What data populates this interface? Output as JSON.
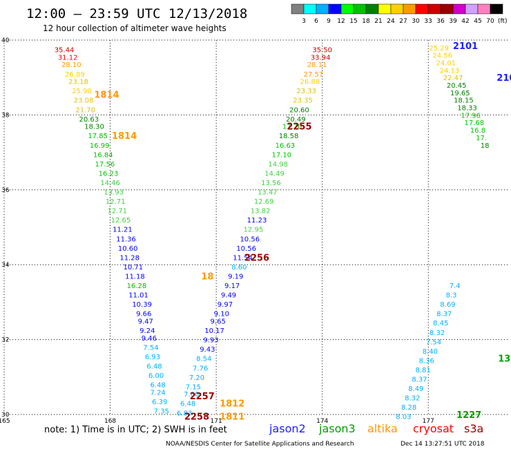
{
  "header": {
    "title": "12:00 – 23:59 UTC 12/13/2018",
    "subtitle": "12 hour collection of altimeter wave heights"
  },
  "colors": {
    "plot_bg": "#ffffff",
    "grid": "#000000",
    "text": "#000000",
    "jason2": "#1e1eff",
    "jason3": "#00a000",
    "altika": "#ff9900",
    "cryosat": "#ff0000",
    "s3a": "#990000"
  },
  "colorbar": {
    "colors": [
      "#808080",
      "#00ffff",
      "#00b0ff",
      "#0000ff",
      "#00ff00",
      "#00c000",
      "#008000",
      "#ffff00",
      "#ffd000",
      "#ff9900",
      "#ff0000",
      "#cc0000",
      "#990000",
      "#cc00cc",
      "#d0a0ff",
      "#ff80c0",
      "#000000"
    ],
    "labels": [
      "3",
      "6",
      "9",
      "12",
      "15",
      "18",
      "21",
      "24",
      "27",
      "30",
      "33",
      "36",
      "39",
      "42",
      "45",
      "70"
    ],
    "unit": "(ft)"
  },
  "footer": {
    "note": "note: 1) Time is in UTC; 2) SWH is in feet",
    "credit": "NOAA/NESDIS Center for Satellite Applications and Research",
    "timestamp": "Dec 14 13:27:51 UTC 2018"
  },
  "legend": [
    {
      "name": "jason2",
      "color": "#1e1eff"
    },
    {
      "name": "jason3",
      "color": "#00a000"
    },
    {
      "name": "altika",
      "color": "#ff9900"
    },
    {
      "name": "cryosat",
      "color": "#ff0000"
    },
    {
      "name": "s3a",
      "color": "#990000"
    }
  ],
  "chart_data": {
    "type": "scatter",
    "xlim": [
      165,
      179.3
    ],
    "ylim": [
      30,
      40
    ],
    "x_ticks": [
      165,
      168,
      171,
      174,
      177
    ],
    "y_ticks": [
      30,
      32,
      34,
      36,
      38,
      40
    ],
    "grid": true,
    "series": [
      {
        "name": "jason3",
        "points": [
          {
            "x": 166.7,
            "y": 39.75,
            "v": "35.44"
          },
          {
            "x": 166.8,
            "y": 39.55,
            "v": "31.12"
          },
          {
            "x": 166.9,
            "y": 39.35,
            "v": "28.10"
          },
          {
            "x": 167.0,
            "y": 39.1,
            "v": "26.89"
          },
          {
            "x": 167.1,
            "y": 38.9,
            "v": "23.18"
          },
          {
            "x": 167.2,
            "y": 38.65,
            "v": "25.90"
          },
          {
            "x": 167.25,
            "y": 38.4,
            "v": "23.08"
          },
          {
            "x": 167.3,
            "y": 38.15,
            "v": "21.70"
          },
          {
            "x": 167.4,
            "y": 37.9,
            "v": "20.63"
          },
          {
            "x": 167.55,
            "y": 37.7,
            "v": "18.30"
          },
          {
            "x": 167.65,
            "y": 37.45,
            "v": "17.85"
          },
          {
            "x": 167.7,
            "y": 37.2,
            "v": "16.99"
          },
          {
            "x": 167.8,
            "y": 36.95,
            "v": "16.84"
          },
          {
            "x": 167.85,
            "y": 36.7,
            "v": "17.56"
          },
          {
            "x": 167.95,
            "y": 36.45,
            "v": "16.23"
          },
          {
            "x": 168.0,
            "y": 36.2,
            "v": "14.46"
          },
          {
            "x": 168.1,
            "y": 35.95,
            "v": "13.93"
          },
          {
            "x": 168.15,
            "y": 35.7,
            "v": "12.71"
          },
          {
            "x": 168.2,
            "y": 35.45,
            "v": "12.71"
          },
          {
            "x": 168.3,
            "y": 35.2,
            "v": "12.65"
          },
          {
            "x": 168.35,
            "y": 34.95,
            "v": "11.21"
          },
          {
            "x": 168.45,
            "y": 34.7,
            "v": "11.36"
          },
          {
            "x": 168.5,
            "y": 34.45,
            "v": "10.60"
          },
          {
            "x": 168.55,
            "y": 34.2,
            "v": "11.28"
          },
          {
            "x": 168.65,
            "y": 33.95,
            "v": "10.71"
          },
          {
            "x": 168.7,
            "y": 33.7,
            "v": "11.18"
          },
          {
            "x": 168.75,
            "y": 33.45,
            "v": "16.28"
          },
          {
            "x": 168.8,
            "y": 33.2,
            "v": "11.01"
          },
          {
            "x": 168.9,
            "y": 32.95,
            "v": "10.39"
          },
          {
            "x": 168.95,
            "y": 32.7,
            "v": "9.66"
          },
          {
            "x": 169.0,
            "y": 32.5,
            "v": "9.47"
          },
          {
            "x": 169.05,
            "y": 32.25,
            "v": "9.24"
          },
          {
            "x": 169.1,
            "y": 32.05,
            "v": "9.46"
          },
          {
            "x": 169.15,
            "y": 31.8,
            "v": "7.54"
          },
          {
            "x": 169.2,
            "y": 31.55,
            "v": "6.93"
          },
          {
            "x": 169.25,
            "y": 31.3,
            "v": "6.48"
          },
          {
            "x": 169.3,
            "y": 31.05,
            "v": "6.00"
          },
          {
            "x": 169.35,
            "y": 30.8,
            "v": "6.48"
          },
          {
            "x": 169.35,
            "y": 30.6,
            "v": "7.24"
          },
          {
            "x": 169.4,
            "y": 30.35,
            "v": "6.39"
          },
          {
            "x": 169.45,
            "y": 30.1,
            "v": "7.35"
          },
          {
            "x": 176.3,
            "y": 29.95,
            "v": "8.03"
          },
          {
            "x": 176.45,
            "y": 30.2,
            "v": "8.28"
          },
          {
            "x": 176.55,
            "y": 30.45,
            "v": "8.32"
          },
          {
            "x": 176.65,
            "y": 30.7,
            "v": "8.49"
          },
          {
            "x": 176.75,
            "y": 30.95,
            "v": "8.37"
          },
          {
            "x": 176.85,
            "y": 31.2,
            "v": "8.81"
          },
          {
            "x": 176.95,
            "y": 31.45,
            "v": "8.36"
          },
          {
            "x": 177.05,
            "y": 31.7,
            "v": "8.40"
          },
          {
            "x": 177.15,
            "y": 31.95,
            "v": "7.54"
          },
          {
            "x": 177.25,
            "y": 32.2,
            "v": "8.32"
          },
          {
            "x": 177.35,
            "y": 32.45,
            "v": "8.45"
          },
          {
            "x": 177.45,
            "y": 32.7,
            "v": "8.37"
          },
          {
            "x": 177.55,
            "y": 32.95,
            "v": "8.69"
          },
          {
            "x": 177.65,
            "y": 33.2,
            "v": "8.3"
          },
          {
            "x": 177.75,
            "y": 33.45,
            "v": "7.4"
          },
          {
            "x": 174.0,
            "y": 39.75,
            "v": "35.50"
          },
          {
            "x": 173.95,
            "y": 39.55,
            "v": "33.94"
          },
          {
            "x": 173.85,
            "y": 39.35,
            "v": "28.11"
          },
          {
            "x": 173.75,
            "y": 39.1,
            "v": "27.57"
          },
          {
            "x": 173.65,
            "y": 38.9,
            "v": "26.88"
          },
          {
            "x": 173.55,
            "y": 38.65,
            "v": "23.33"
          },
          {
            "x": 173.45,
            "y": 38.4,
            "v": "23.35"
          },
          {
            "x": 173.35,
            "y": 38.15,
            "v": "20.60"
          },
          {
            "x": 173.25,
            "y": 37.9,
            "v": "20.49"
          },
          {
            "x": 173.15,
            "y": 37.7,
            "v": "17.70"
          },
          {
            "x": 173.05,
            "y": 37.45,
            "v": "18.58"
          },
          {
            "x": 172.95,
            "y": 37.2,
            "v": "16.63"
          },
          {
            "x": 172.85,
            "y": 36.95,
            "v": "17.10"
          },
          {
            "x": 172.75,
            "y": 36.7,
            "v": "14.98"
          },
          {
            "x": 172.65,
            "y": 36.45,
            "v": "14.49"
          },
          {
            "x": 172.55,
            "y": 36.2,
            "v": "13.56"
          },
          {
            "x": 172.45,
            "y": 35.95,
            "v": "13.47"
          },
          {
            "x": 172.35,
            "y": 35.7,
            "v": "12.69"
          },
          {
            "x": 172.25,
            "y": 35.45,
            "v": "13.82"
          },
          {
            "x": 172.15,
            "y": 35.2,
            "v": "11.23"
          },
          {
            "x": 172.05,
            "y": 34.95,
            "v": "12.95"
          },
          {
            "x": 171.95,
            "y": 34.7,
            "v": "10.56"
          },
          {
            "x": 171.85,
            "y": 34.45,
            "v": "10.56"
          },
          {
            "x": 171.75,
            "y": 34.2,
            "v": "11.54"
          },
          {
            "x": 171.65,
            "y": 33.95,
            "v": "8.60"
          },
          {
            "x": 171.55,
            "y": 33.7,
            "v": "9.19"
          },
          {
            "x": 171.45,
            "y": 33.45,
            "v": "9.17"
          },
          {
            "x": 171.35,
            "y": 33.2,
            "v": "9.49"
          },
          {
            "x": 171.25,
            "y": 32.95,
            "v": "9.97"
          },
          {
            "x": 171.15,
            "y": 32.7,
            "v": "9.10"
          },
          {
            "x": 171.05,
            "y": 32.5,
            "v": "9.65"
          },
          {
            "x": 170.95,
            "y": 32.25,
            "v": "10.17"
          },
          {
            "x": 170.85,
            "y": 32.0,
            "v": "9.93"
          },
          {
            "x": 170.75,
            "y": 31.75,
            "v": "9.43"
          },
          {
            "x": 170.65,
            "y": 31.5,
            "v": "8.54"
          },
          {
            "x": 170.55,
            "y": 31.25,
            "v": "7.76"
          },
          {
            "x": 170.45,
            "y": 31.0,
            "v": "7.20"
          },
          {
            "x": 170.35,
            "y": 30.75,
            "v": "7.15"
          },
          {
            "x": 170.3,
            "y": 30.55,
            "v": "7.00"
          },
          {
            "x": 170.2,
            "y": 30.3,
            "v": "6.48"
          },
          {
            "x": 170.1,
            "y": 30.05,
            "v": "6.83"
          },
          {
            "x": 177.3,
            "y": 39.8,
            "v": "25.29"
          },
          {
            "x": 177.4,
            "y": 39.6,
            "v": "24.56"
          },
          {
            "x": 177.5,
            "y": 39.4,
            "v": "24.01"
          },
          {
            "x": 177.6,
            "y": 39.2,
            "v": "24.13"
          },
          {
            "x": 177.7,
            "y": 39.0,
            "v": "22.47"
          },
          {
            "x": 177.8,
            "y": 38.8,
            "v": "20.45"
          },
          {
            "x": 177.9,
            "y": 38.6,
            "v": "19.65"
          },
          {
            "x": 178.0,
            "y": 38.4,
            "v": "18.15"
          },
          {
            "x": 178.1,
            "y": 38.2,
            "v": "18.33"
          },
          {
            "x": 178.2,
            "y": 38.0,
            "v": "17.96"
          },
          {
            "x": 178.3,
            "y": 37.8,
            "v": "17.68"
          },
          {
            "x": 178.4,
            "y": 37.6,
            "v": "16.8"
          },
          {
            "x": 178.5,
            "y": 37.4,
            "v": "17."
          },
          {
            "x": 178.6,
            "y": 37.2,
            "v": "18"
          }
        ]
      }
    ],
    "time_labels": [
      {
        "x": 167.9,
        "y": 38.55,
        "text": "1814",
        "color": "#ff9900"
      },
      {
        "x": 168.4,
        "y": 37.45,
        "text": "1814",
        "color": "#ff9900"
      },
      {
        "x": 173.35,
        "y": 37.7,
        "text": "2255",
        "color": "#990000"
      },
      {
        "x": 172.15,
        "y": 34.2,
        "text": "2256",
        "color": "#990000"
      },
      {
        "x": 170.75,
        "y": 33.7,
        "text": "18",
        "color": "#ff9900"
      },
      {
        "x": 170.6,
        "y": 30.5,
        "text": "2257",
        "color": "#990000"
      },
      {
        "x": 170.45,
        "y": 29.95,
        "text": "2258",
        "color": "#990000"
      },
      {
        "x": 171.45,
        "y": 30.3,
        "text": "1812",
        "color": "#ff9900"
      },
      {
        "x": 171.45,
        "y": 29.95,
        "text": "1811",
        "color": "#ff9900"
      },
      {
        "x": 178.05,
        "y": 39.85,
        "text": "2101",
        "color": "#1e1eff"
      },
      {
        "x": 179.2,
        "y": 39.0,
        "text": "210",
        "color": "#1e1eff"
      },
      {
        "x": 178.15,
        "y": 30.0,
        "text": "1227",
        "color": "#00a000"
      },
      {
        "x": 179.15,
        "y": 31.5,
        "text": "13",
        "color": "#00a000"
      }
    ]
  }
}
